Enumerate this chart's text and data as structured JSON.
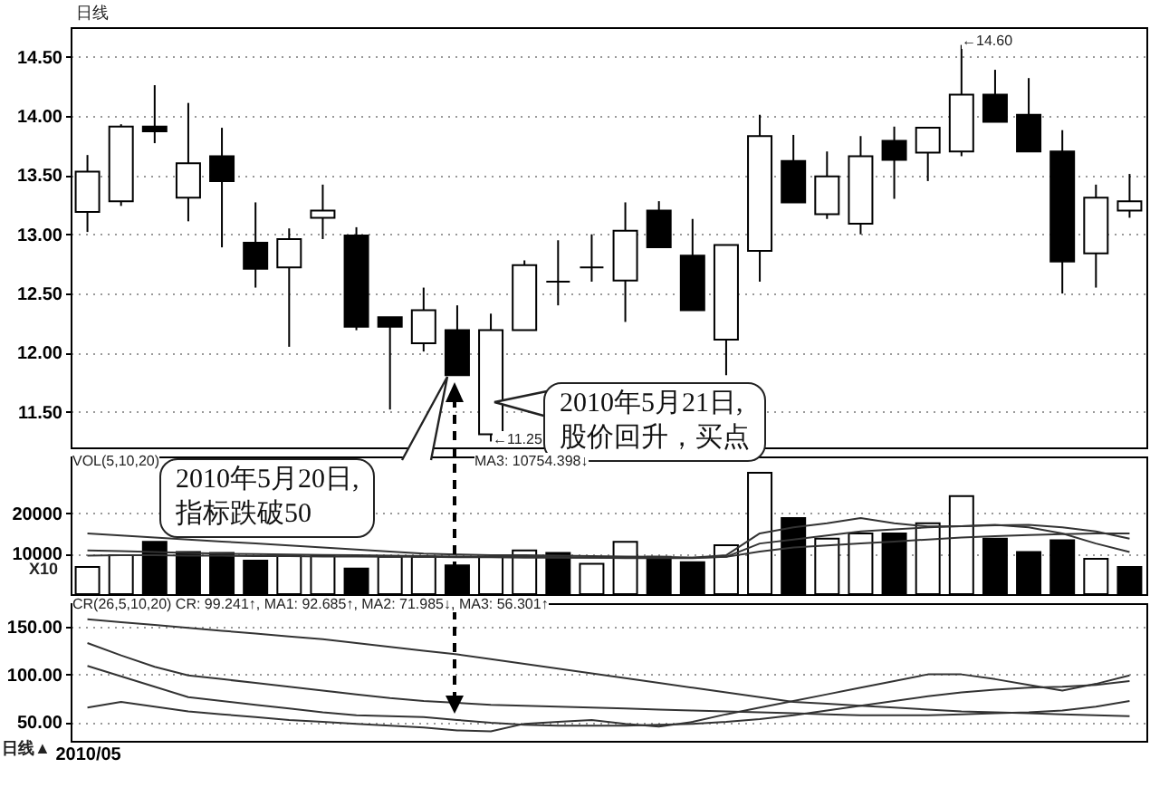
{
  "chart_data": [
    {
      "type": "candlestick",
      "title": "日线",
      "categories": [
        null,
        null,
        null,
        null,
        null,
        null,
        null,
        null,
        null,
        null,
        null,
        null,
        null,
        null,
        null,
        null,
        null,
        null,
        null,
        null,
        null,
        null,
        null,
        null,
        null,
        null,
        null,
        null,
        null,
        null,
        null,
        null
      ],
      "ohlc": [
        [
          13.19,
          13.67,
          13.02,
          13.53
        ],
        [
          13.28,
          13.93,
          13.24,
          13.91
        ],
        [
          13.91,
          14.26,
          13.77,
          13.87
        ],
        [
          13.31,
          14.11,
          13.11,
          13.6
        ],
        [
          13.66,
          13.9,
          12.89,
          13.45
        ],
        [
          12.93,
          13.27,
          12.55,
          12.71
        ],
        [
          12.72,
          13.05,
          12.05,
          12.96
        ],
        [
          13.14,
          13.42,
          12.96,
          13.2
        ],
        [
          12.99,
          13.06,
          12.19,
          12.22
        ],
        [
          12.3,
          12.3,
          11.52,
          12.22
        ],
        [
          12.08,
          12.55,
          12.01,
          12.36
        ],
        [
          12.19,
          12.4,
          11.81,
          11.81
        ],
        [
          11.31,
          12.33,
          11.25,
          12.19
        ],
        [
          12.19,
          12.78,
          12.19,
          12.74
        ],
        [
          12.6,
          12.95,
          12.4,
          12.6
        ],
        [
          12.72,
          13.0,
          12.6,
          12.72
        ],
        [
          12.61,
          13.27,
          12.26,
          13.03
        ],
        [
          13.2,
          13.28,
          12.89,
          12.89
        ],
        [
          12.82,
          13.13,
          12.36,
          12.36
        ],
        [
          12.11,
          12.91,
          11.81,
          12.91
        ],
        [
          12.86,
          14.01,
          12.6,
          13.83
        ],
        [
          13.62,
          13.84,
          13.27,
          13.27
        ],
        [
          13.17,
          13.7,
          13.13,
          13.49
        ],
        [
          13.09,
          13.83,
          13.0,
          13.66
        ],
        [
          13.79,
          13.91,
          13.3,
          13.63
        ],
        [
          13.69,
          13.9,
          13.45,
          13.9
        ],
        [
          13.7,
          14.6,
          13.66,
          14.18
        ],
        [
          14.18,
          14.39,
          13.95,
          13.95
        ],
        [
          14.01,
          14.32,
          13.7,
          13.7
        ],
        [
          13.7,
          13.88,
          12.5,
          12.77
        ],
        [
          12.84,
          13.42,
          12.55,
          13.31
        ],
        [
          13.2,
          13.51,
          13.14,
          13.28
        ]
      ],
      "colors": [
        "#ffffff",
        "#ffffff",
        "#000000",
        "#ffffff",
        "#000000",
        "#000000",
        "#ffffff",
        "#ffffff",
        "#000000",
        "#000000",
        "#ffffff",
        "#000000",
        "#ffffff",
        "#ffffff",
        "#000000",
        "#000000",
        "#ffffff",
        "#000000",
        "#000000",
        "#ffffff",
        "#ffffff",
        "#000000",
        "#ffffff",
        "#ffffff",
        "#000000",
        "#ffffff",
        "#ffffff",
        "#000000",
        "#000000",
        "#000000",
        "#ffffff",
        "#ffffff"
      ],
      "ylim": [
        11.2,
        14.75
      ],
      "yticks": [
        {
          "value": 11.5,
          "label": "11.50"
        },
        {
          "value": 12,
          "label": "12.00"
        },
        {
          "value": 12.5,
          "label": "12.50"
        },
        {
          "value": 13,
          "label": "13.00"
        },
        {
          "value": 13.5,
          "label": "13.50"
        },
        {
          "value": 14,
          "label": "14.00"
        },
        {
          "value": 14.5,
          "label": "14.50"
        }
      ],
      "grid": "y",
      "tick_labels": "y",
      "annotations": [
        "2010年5月20日,\n指标跌破50",
        "2010年5月21日,\n股价回升，买点",
        "←14.60",
        "←11.25"
      ]
    },
    {
      "type": "bar",
      "categories": [
        null,
        null,
        null,
        null,
        null,
        null,
        null,
        null,
        null,
        null,
        null,
        null,
        null,
        null,
        null,
        null,
        null,
        null,
        null,
        null,
        null,
        null,
        null,
        null,
        null,
        null,
        null,
        null,
        null,
        null,
        null,
        null
      ],
      "series": [
        {
          "type": "bar",
          "values": [
            6700,
            9600,
            12900,
            10400,
            10200,
            8300,
            9600,
            9400,
            6300,
            9200,
            9200,
            7100,
            9200,
            10800,
            10200,
            7500,
            12900,
            9200,
            7900,
            12100,
            30000,
            18800,
            13700,
            15000,
            15000,
            17500,
            24200,
            13700,
            10400,
            13300,
            8700,
            6700
          ],
          "colors": [
            "#ffffff",
            "#ffffff",
            "#000000",
            "#000000",
            "#000000",
            "#000000",
            "#ffffff",
            "#ffffff",
            "#000000",
            "#ffffff",
            "#ffffff",
            "#000000",
            "#ffffff",
            "#ffffff",
            "#000000",
            "#ffffff",
            "#ffffff",
            "#000000",
            "#000000",
            "#ffffff",
            "#ffffff",
            "#000000",
            "#ffffff",
            "#ffffff",
            "#000000",
            "#ffffff",
            "#ffffff",
            "#000000",
            "#000000",
            "#000000",
            "#ffffff",
            "#000000"
          ]
        },
        {
          "type": "line",
          "color": "#333333",
          "values": [
            15000,
            14500,
            14000,
            13500,
            13000,
            12500,
            12000,
            11500,
            11000,
            10500,
            10000,
            9800,
            9600,
            9600,
            9500,
            9400,
            9300,
            9200,
            9000,
            9600,
            15000,
            16500,
            17500,
            18800,
            17500,
            16700,
            16800,
            17000,
            17100,
            16500,
            15500,
            13700
          ]
        },
        {
          "type": "line",
          "color": "#333333",
          "values": [
            10800,
            10600,
            10400,
            10200,
            10000,
            9900,
            9800,
            9700,
            9600,
            9500,
            9400,
            9300,
            9200,
            9200,
            9100,
            9000,
            8900,
            8900,
            8900,
            9200,
            12500,
            13500,
            14500,
            15500,
            16000,
            16500,
            16800,
            17100,
            16500,
            15000,
            12500,
            10400
          ]
        },
        {
          "type": "line",
          "color": "#333333",
          "values": [
            9500,
            9600,
            9600,
            9500,
            9500,
            9400,
            9400,
            9300,
            9300,
            9200,
            9200,
            9100,
            9100,
            9000,
            9000,
            9000,
            9000,
            9000,
            9000,
            9200,
            10500,
            11500,
            12000,
            12500,
            13000,
            13500,
            14000,
            14300,
            14600,
            14800,
            15000,
            15000
          ]
        }
      ],
      "ylim": [
        0,
        34000
      ],
      "yticks": [
        10000,
        20000
      ],
      "grid": "y",
      "tick_labels": "y",
      "annotations": [
        "VOL(5,10,20)",
        "MA3: 10754.398↓",
        "X10"
      ]
    },
    {
      "type": "line",
      "categories": [
        "2010/05",
        null,
        null,
        null,
        null,
        null,
        null,
        null,
        null,
        null,
        null,
        null,
        null,
        null,
        null,
        null,
        null,
        null,
        null,
        null,
        null,
        null,
        null,
        null,
        null,
        null,
        null,
        null,
        null,
        null,
        null,
        null
      ],
      "series": [
        {
          "color": "#333333",
          "values": [
            158,
            155,
            152,
            149,
            146,
            143,
            140,
            137,
            133,
            129,
            125,
            121,
            116,
            111,
            106,
            101,
            96,
            91,
            86,
            81,
            76,
            71,
            69,
            67,
            65,
            63,
            61,
            60,
            59,
            58,
            57,
            56
          ]
        },
        {
          "color": "#333333",
          "values": [
            133,
            120,
            108,
            99,
            95,
            91,
            87,
            83,
            79,
            75,
            72,
            70,
            68,
            67,
            66,
            65,
            64,
            63,
            62,
            61,
            60,
            59,
            58,
            57,
            57,
            57,
            58,
            59,
            60,
            62,
            66,
            72
          ]
        },
        {
          "color": "#333333",
          "values": [
            109,
            98,
            87,
            76,
            72,
            68,
            64,
            60,
            57,
            56,
            55,
            52,
            49,
            47,
            46,
            46,
            46,
            47,
            48,
            50,
            53,
            57,
            62,
            67,
            72,
            77,
            81,
            84,
            86,
            87,
            89,
            93
          ]
        },
        {
          "color": "#333333",
          "values": [
            65,
            71,
            66,
            61,
            58,
            55,
            52,
            50,
            48,
            46,
            44,
            41,
            40,
            48,
            50,
            52,
            48,
            45,
            50,
            58,
            65,
            72,
            79,
            86,
            93,
            100,
            100,
            95,
            89,
            83,
            90,
            99
          ]
        }
      ],
      "ylim": [
        30,
        175
      ],
      "yticks": [
        {
          "value": 50,
          "label": "50.00"
        },
        {
          "value": 100,
          "label": "100.00"
        },
        {
          "value": 150,
          "label": "150.00"
        }
      ],
      "grid": "y",
      "annotations": [
        "CR(26,5,10,20) CR: 99.241↑, MA1: 92.685↑, MA2: 71.985↓, MA3: 56.301↑",
        "日线▲"
      ]
    }
  ]
}
